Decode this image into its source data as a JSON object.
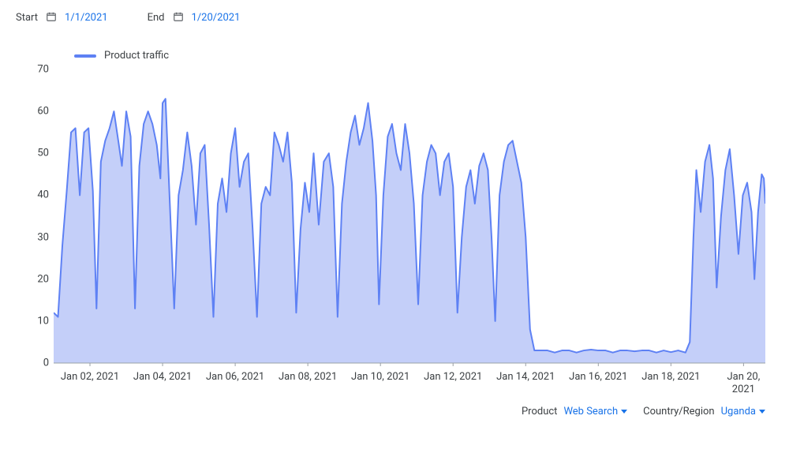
{
  "date_range": {
    "start_label": "Start",
    "end_label": "End",
    "start_value": "1/1/2021",
    "end_value": "1/20/2021"
  },
  "legend": {
    "label": "Product traffic"
  },
  "chart": {
    "type": "area",
    "line_color": "#5e81f4",
    "fill_color": "#c4cff9",
    "line_width": 2,
    "axis_color": "#9aa0a6",
    "tick_color": "#9aa0a6",
    "y": {
      "min": 0,
      "max": 70,
      "step": 10,
      "ticks": [
        0,
        10,
        20,
        30,
        40,
        50,
        60,
        70
      ]
    },
    "x": {
      "min": 0,
      "max": 19.6,
      "ticks": [
        {
          "v": 1,
          "label": "Jan 02, 2021"
        },
        {
          "v": 3,
          "label": "Jan 04, 2021"
        },
        {
          "v": 5,
          "label": "Jan 06, 2021"
        },
        {
          "v": 7,
          "label": "Jan 08, 2021"
        },
        {
          "v": 9,
          "label": "Jan 10, 2021"
        },
        {
          "v": 11,
          "label": "Jan 12, 2021"
        },
        {
          "v": 13,
          "label": "Jan 14, 2021"
        },
        {
          "v": 15,
          "label": "Jan 16, 2021"
        },
        {
          "v": 17,
          "label": "Jan 18, 2021"
        },
        {
          "v": 19,
          "label": "Jan 20,\n2021"
        }
      ]
    },
    "series": {
      "name": "Product traffic",
      "points": [
        [
          0.0,
          12
        ],
        [
          0.12,
          11
        ],
        [
          0.24,
          28
        ],
        [
          0.36,
          41
        ],
        [
          0.48,
          55
        ],
        [
          0.6,
          56
        ],
        [
          0.72,
          40
        ],
        [
          0.84,
          55
        ],
        [
          0.96,
          56
        ],
        [
          1.08,
          41
        ],
        [
          1.18,
          13
        ],
        [
          1.3,
          48
        ],
        [
          1.42,
          53
        ],
        [
          1.54,
          56
        ],
        [
          1.66,
          60
        ],
        [
          1.78,
          53
        ],
        [
          1.88,
          47
        ],
        [
          2.0,
          60
        ],
        [
          2.12,
          54
        ],
        [
          2.24,
          13
        ],
        [
          2.36,
          47
        ],
        [
          2.48,
          57
        ],
        [
          2.6,
          60
        ],
        [
          2.72,
          57
        ],
        [
          2.84,
          52
        ],
        [
          2.94,
          44
        ],
        [
          3.0,
          62
        ],
        [
          3.08,
          63
        ],
        [
          3.2,
          38
        ],
        [
          3.32,
          13
        ],
        [
          3.44,
          40
        ],
        [
          3.56,
          46
        ],
        [
          3.68,
          55
        ],
        [
          3.8,
          47
        ],
        [
          3.92,
          33
        ],
        [
          4.04,
          50
        ],
        [
          4.16,
          52
        ],
        [
          4.28,
          33
        ],
        [
          4.4,
          11
        ],
        [
          4.52,
          38
        ],
        [
          4.64,
          44
        ],
        [
          4.76,
          36
        ],
        [
          4.88,
          50
        ],
        [
          5.0,
          56
        ],
        [
          5.12,
          42
        ],
        [
          5.24,
          48
        ],
        [
          5.36,
          50
        ],
        [
          5.48,
          32
        ],
        [
          5.6,
          11
        ],
        [
          5.72,
          38
        ],
        [
          5.84,
          42
        ],
        [
          5.96,
          40
        ],
        [
          6.08,
          55
        ],
        [
          6.2,
          52
        ],
        [
          6.32,
          48
        ],
        [
          6.44,
          55
        ],
        [
          6.56,
          43
        ],
        [
          6.68,
          12
        ],
        [
          6.8,
          32
        ],
        [
          6.92,
          43
        ],
        [
          7.04,
          36
        ],
        [
          7.16,
          50
        ],
        [
          7.3,
          33
        ],
        [
          7.44,
          48
        ],
        [
          7.58,
          50
        ],
        [
          7.7,
          42
        ],
        [
          7.82,
          11
        ],
        [
          7.94,
          38
        ],
        [
          8.06,
          48
        ],
        [
          8.18,
          55
        ],
        [
          8.3,
          59
        ],
        [
          8.42,
          52
        ],
        [
          8.54,
          56
        ],
        [
          8.66,
          62
        ],
        [
          8.78,
          53
        ],
        [
          8.88,
          40
        ],
        [
          8.96,
          14
        ],
        [
          9.08,
          40
        ],
        [
          9.2,
          54
        ],
        [
          9.32,
          57
        ],
        [
          9.44,
          50
        ],
        [
          9.56,
          46
        ],
        [
          9.68,
          57
        ],
        [
          9.8,
          50
        ],
        [
          9.92,
          38
        ],
        [
          10.04,
          14
        ],
        [
          10.16,
          40
        ],
        [
          10.28,
          48
        ],
        [
          10.4,
          52
        ],
        [
          10.52,
          50
        ],
        [
          10.64,
          40
        ],
        [
          10.76,
          48
        ],
        [
          10.88,
          50
        ],
        [
          11.0,
          42
        ],
        [
          11.12,
          12
        ],
        [
          11.24,
          30
        ],
        [
          11.36,
          42
        ],
        [
          11.48,
          46
        ],
        [
          11.6,
          38
        ],
        [
          11.72,
          47
        ],
        [
          11.84,
          50
        ],
        [
          11.96,
          46
        ],
        [
          12.06,
          30
        ],
        [
          12.16,
          10
        ],
        [
          12.28,
          40
        ],
        [
          12.4,
          48
        ],
        [
          12.52,
          52
        ],
        [
          12.64,
          53
        ],
        [
          12.76,
          48
        ],
        [
          12.88,
          43
        ],
        [
          13.0,
          30
        ],
        [
          13.12,
          8
        ],
        [
          13.24,
          3
        ],
        [
          13.4,
          3
        ],
        [
          13.6,
          3
        ],
        [
          13.8,
          2.5
        ],
        [
          14.0,
          3
        ],
        [
          14.2,
          3
        ],
        [
          14.4,
          2.5
        ],
        [
          14.6,
          3
        ],
        [
          14.8,
          3.2
        ],
        [
          15.0,
          3
        ],
        [
          15.2,
          3
        ],
        [
          15.4,
          2.5
        ],
        [
          15.6,
          3
        ],
        [
          15.8,
          3
        ],
        [
          16.0,
          2.8
        ],
        [
          16.2,
          3
        ],
        [
          16.4,
          3
        ],
        [
          16.6,
          2.5
        ],
        [
          16.8,
          3
        ],
        [
          17.0,
          2.6
        ],
        [
          17.2,
          3
        ],
        [
          17.4,
          2.5
        ],
        [
          17.52,
          5
        ],
        [
          17.62,
          30
        ],
        [
          17.7,
          46
        ],
        [
          17.82,
          36
        ],
        [
          17.94,
          48
        ],
        [
          18.06,
          52
        ],
        [
          18.16,
          44
        ],
        [
          18.26,
          18
        ],
        [
          18.38,
          35
        ],
        [
          18.5,
          46
        ],
        [
          18.62,
          51
        ],
        [
          18.74,
          40
        ],
        [
          18.86,
          26
        ],
        [
          18.98,
          40
        ],
        [
          19.1,
          43
        ],
        [
          19.22,
          36
        ],
        [
          19.3,
          20
        ],
        [
          19.4,
          36
        ],
        [
          19.5,
          45
        ],
        [
          19.56,
          44
        ],
        [
          19.6,
          38
        ]
      ]
    }
  },
  "filters": {
    "product_label": "Product",
    "product_value": "Web Search",
    "region_label": "Country/Region",
    "region_value": "Uganda"
  }
}
